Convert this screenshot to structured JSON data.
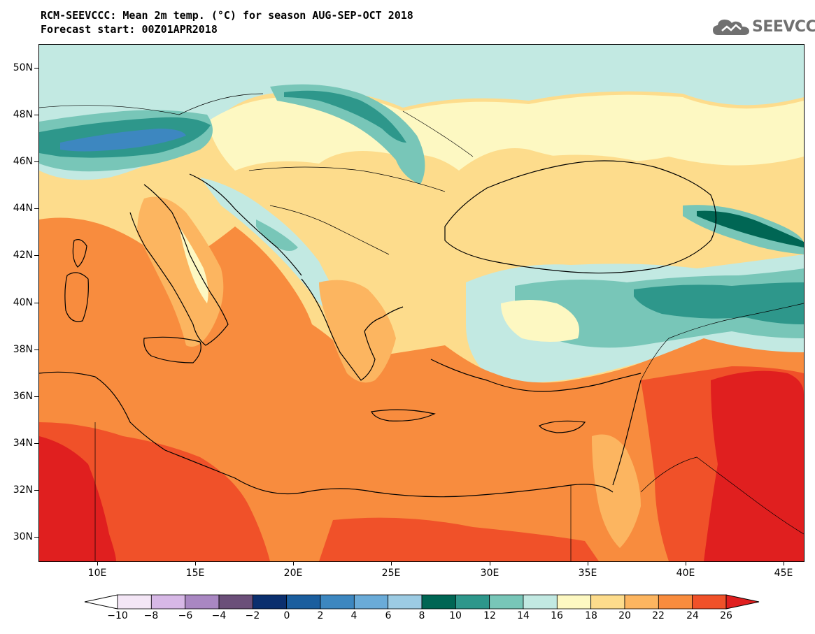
{
  "header": {
    "title_line1": "RCM-SEEVCCC: Mean 2m temp. (°C) for season AUG-SEP-OCT 2018",
    "title_line2": "Forecast start: 00Z01APR2018",
    "logo_text": "SEEVCCC"
  },
  "map": {
    "variable": "Mean 2m temp. (°C)",
    "lon_range": [
      7,
      46
    ],
    "lat_range": [
      29,
      51
    ],
    "lat_ticks": [
      {
        "value": 50,
        "label": "50N"
      },
      {
        "value": 48,
        "label": "48N"
      },
      {
        "value": 46,
        "label": "46N"
      },
      {
        "value": 44,
        "label": "44N"
      },
      {
        "value": 42,
        "label": "42N"
      },
      {
        "value": 40,
        "label": "40N"
      },
      {
        "value": 38,
        "label": "38N"
      },
      {
        "value": 36,
        "label": "36N"
      },
      {
        "value": 34,
        "label": "34N"
      },
      {
        "value": 32,
        "label": "32N"
      },
      {
        "value": 30,
        "label": "30N"
      }
    ],
    "lon_ticks": [
      {
        "value": 10,
        "label": "10E"
      },
      {
        "value": 15,
        "label": "15E"
      },
      {
        "value": 20,
        "label": "20E"
      },
      {
        "value": 25,
        "label": "25E"
      },
      {
        "value": 30,
        "label": "30E"
      },
      {
        "value": 35,
        "label": "35E"
      },
      {
        "value": 40,
        "label": "40E"
      },
      {
        "value": 45,
        "label": "45E"
      }
    ]
  },
  "colorbar": {
    "labels": [
      "−10",
      "−8",
      "−6",
      "−4",
      "−2",
      "0",
      "2",
      "4",
      "6",
      "8",
      "10",
      "12",
      "14",
      "16",
      "18",
      "20",
      "22",
      "24",
      "26"
    ],
    "colors": [
      "#f4e6f6",
      "#d7b8e6",
      "#a987c2",
      "#6b4f79",
      "#0b2f6e",
      "#1b5e9e",
      "#3d87c0",
      "#6aabd8",
      "#9ccbe3",
      "#006654",
      "#2e978b",
      "#78c6b8",
      "#c2e9e2",
      "#fdf8c2",
      "#fddc8c",
      "#fcb560",
      "#f88c3e",
      "#f05129",
      "#e01f1f"
    ]
  }
}
